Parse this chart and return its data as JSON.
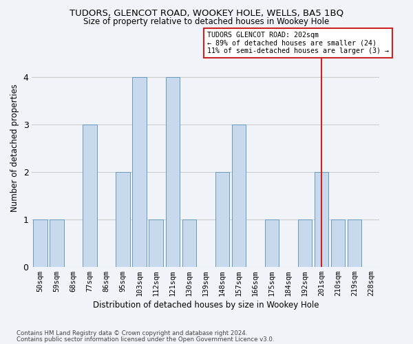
{
  "title": "TUDORS, GLENCOT ROAD, WOOKEY HOLE, WELLS, BA5 1BQ",
  "subtitle": "Size of property relative to detached houses in Wookey Hole",
  "xlabel": "Distribution of detached houses by size in Wookey Hole",
  "ylabel": "Number of detached properties",
  "categories": [
    "50sqm",
    "59sqm",
    "68sqm",
    "77sqm",
    "86sqm",
    "95sqm",
    "103sqm",
    "112sqm",
    "121sqm",
    "130sqm",
    "139sqm",
    "148sqm",
    "157sqm",
    "166sqm",
    "175sqm",
    "184sqm",
    "192sqm",
    "201sqm",
    "210sqm",
    "219sqm",
    "228sqm"
  ],
  "values": [
    1,
    1,
    0,
    3,
    0,
    2,
    4,
    1,
    4,
    1,
    0,
    2,
    3,
    0,
    1,
    0,
    1,
    2,
    1,
    1,
    0
  ],
  "bar_color": "#c8d8ed",
  "bar_edge_color": "#6699bb",
  "highlight_color": "#cc2222",
  "highlight_index": 17,
  "vline_x": 17,
  "ylim": [
    0,
    5
  ],
  "yticks": [
    0,
    1,
    2,
    3,
    4
  ],
  "annotation_title": "TUDORS GLENCOT ROAD: 202sqm",
  "annotation_line1": "← 89% of detached houses are smaller (24)",
  "annotation_line2": "11% of semi-detached houses are larger (3) →",
  "footer1": "Contains HM Land Registry data © Crown copyright and database right 2024.",
  "footer2": "Contains public sector information licensed under the Open Government Licence v3.0.",
  "bg_color": "#f0f4f8",
  "grid_color": "#cccccc"
}
